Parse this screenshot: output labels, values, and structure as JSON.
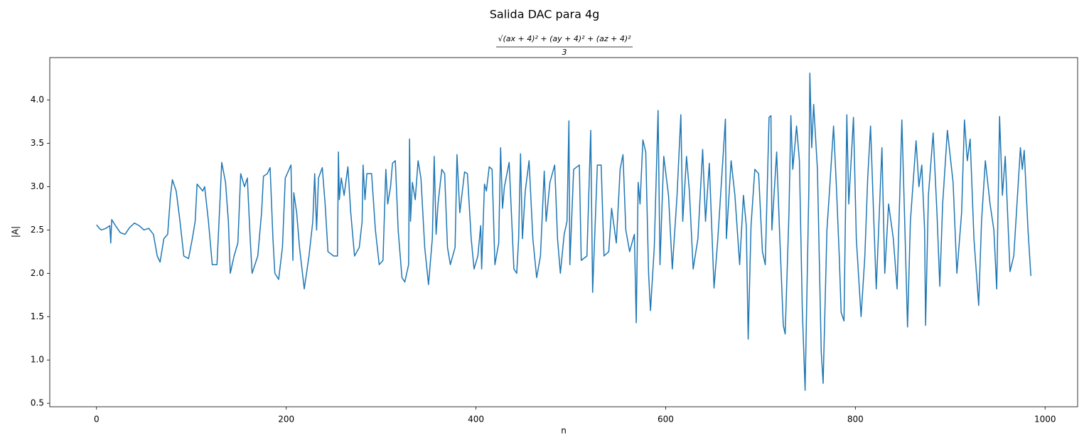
{
  "chart_data": {
    "type": "line",
    "title": "Salida DAC para 4g",
    "subtitle": {
      "numerator": "√(ax + 4)² + (ay + 4)² + (az + 4)²",
      "denominator": "3"
    },
    "x_label": "n",
    "y_label": "|A|",
    "color": "#1f77b4",
    "xlim": [
      -49.3,
      1034.3
    ],
    "ylim": [
      0.46,
      4.49
    ],
    "xticks": [
      0,
      200,
      400,
      600,
      800,
      1000
    ],
    "yticks": [
      0.5,
      {
        "value": 1,
        "label": "1.0"
      },
      1.5,
      {
        "value": 2,
        "label": "2.0"
      },
      2.5,
      {
        "value": 3,
        "label": "3.0"
      },
      3.5,
      {
        "value": 4,
        "label": "4.0"
      }
    ],
    "grid": false,
    "x": [
      0,
      3,
      5,
      10,
      14,
      15,
      16,
      20,
      25,
      30,
      35,
      40,
      45,
      50,
      55,
      60,
      64,
      67,
      71,
      75,
      78,
      80,
      84,
      88,
      92,
      97,
      101,
      104,
      106,
      112,
      114,
      118,
      122,
      127,
      130,
      132,
      136,
      139,
      141,
      145,
      149,
      152,
      156,
      159,
      162,
      164,
      170,
      174,
      176,
      180,
      183,
      186,
      188,
      192,
      196,
      199,
      203,
      205,
      207,
      208,
      211,
      214,
      219,
      224,
      228,
      230,
      232,
      234,
      238,
      241,
      244,
      250,
      254,
      255,
      256,
      258,
      261,
      265,
      268,
      272,
      277,
      280,
      281,
      283,
      285,
      290,
      294,
      298,
      302,
      305,
      307,
      310,
      312,
      315,
      318,
      322,
      325,
      329,
      330,
      331,
      333,
      336,
      339,
      342,
      346,
      350,
      354,
      356,
      358,
      360,
      364,
      367,
      370,
      373,
      378,
      380,
      383,
      388,
      391,
      395,
      398,
      402,
      405,
      406,
      409,
      411,
      414,
      417,
      420,
      424,
      426,
      428,
      430,
      435,
      440,
      443,
      445,
      447,
      449,
      452,
      456,
      460,
      464,
      468,
      472,
      474,
      478,
      483,
      486,
      489,
      493,
      496,
      498,
      499,
      503,
      509,
      511,
      517,
      521,
      523,
      528,
      532,
      535,
      540,
      543,
      548,
      552,
      555,
      558,
      562,
      567,
      569,
      571,
      573,
      576,
      579,
      582,
      584,
      588,
      592,
      594,
      598,
      603,
      607,
      612,
      616,
      618,
      622,
      625,
      629,
      634,
      639,
      642,
      646,
      651,
      655,
      663,
      664,
      669,
      673,
      678,
      682,
      685,
      687,
      690,
      694,
      698,
      702,
      705,
      709,
      711,
      712,
      717,
      720,
      724,
      726,
      730,
      732,
      734,
      738,
      741,
      744,
      747,
      751,
      752,
      754,
      756,
      760,
      764,
      766,
      770,
      773,
      777,
      780,
      783,
      785,
      788,
      791,
      793,
      798,
      801,
      806,
      810,
      813,
      816,
      819,
      822,
      828,
      831,
      835,
      840,
      844,
      849,
      852,
      855,
      858,
      864,
      867,
      870,
      873,
      874,
      877,
      882,
      886,
      889,
      892,
      897,
      903,
      907,
      912,
      915,
      918,
      921,
      925,
      930,
      933,
      937,
      942,
      946,
      949,
      952,
      955,
      958,
      963,
      967,
      974,
      976,
      978,
      982,
      985
    ],
    "values": [
      2.56,
      2.52,
      2.5,
      2.52,
      2.55,
      2.35,
      2.62,
      2.55,
      2.47,
      2.45,
      2.53,
      2.58,
      2.55,
      2.5,
      2.52,
      2.45,
      2.2,
      2.13,
      2.4,
      2.45,
      2.9,
      3.08,
      2.95,
      2.6,
      2.2,
      2.17,
      2.4,
      2.6,
      3.03,
      2.95,
      3.0,
      2.6,
      2.1,
      2.1,
      2.8,
      3.28,
      3.05,
      2.6,
      2.0,
      2.2,
      2.35,
      3.15,
      3.0,
      3.1,
      2.4,
      2.0,
      2.2,
      2.7,
      3.12,
      3.15,
      3.22,
      2.4,
      2.0,
      1.93,
      2.3,
      3.1,
      3.2,
      3.25,
      2.15,
      2.93,
      2.7,
      2.3,
      1.82,
      2.2,
      2.6,
      3.15,
      2.5,
      3.1,
      3.22,
      2.8,
      2.25,
      2.2,
      2.2,
      3.4,
      2.85,
      3.1,
      2.9,
      3.23,
      2.7,
      2.2,
      2.3,
      2.6,
      3.25,
      2.85,
      3.15,
      3.15,
      2.5,
      2.1,
      2.15,
      3.2,
      2.8,
      3.0,
      3.27,
      3.3,
      2.5,
      1.95,
      1.9,
      2.1,
      3.55,
      2.6,
      3.05,
      2.85,
      3.3,
      3.1,
      2.3,
      1.87,
      2.4,
      3.35,
      2.45,
      2.8,
      3.2,
      3.15,
      2.3,
      2.1,
      2.3,
      3.37,
      2.7,
      3.17,
      3.15,
      2.4,
      2.05,
      2.2,
      2.55,
      2.05,
      3.03,
      2.95,
      3.23,
      3.2,
      2.1,
      2.35,
      3.45,
      2.75,
      3.0,
      3.28,
      2.05,
      2.0,
      2.4,
      3.38,
      2.4,
      2.95,
      3.3,
      2.4,
      1.95,
      2.2,
      3.18,
      2.6,
      3.05,
      3.25,
      2.4,
      2.0,
      2.45,
      2.6,
      3.76,
      2.1,
      3.2,
      3.25,
      2.15,
      2.2,
      3.65,
      1.78,
      3.25,
      3.25,
      2.2,
      2.25,
      2.75,
      2.35,
      3.2,
      3.37,
      2.5,
      2.25,
      2.45,
      1.43,
      3.05,
      2.8,
      3.54,
      3.4,
      2.0,
      1.57,
      2.3,
      3.88,
      2.1,
      3.35,
      2.9,
      2.05,
      2.9,
      3.83,
      2.6,
      3.35,
      2.95,
      2.05,
      2.4,
      3.43,
      2.6,
      3.27,
      1.83,
      2.4,
      3.78,
      2.4,
      3.3,
      2.9,
      2.1,
      2.9,
      2.55,
      1.24,
      2.55,
      3.2,
      3.15,
      2.25,
      2.1,
      3.8,
      3.82,
      2.5,
      3.4,
      2.5,
      1.4,
      1.3,
      2.7,
      3.82,
      3.2,
      3.7,
      3.3,
      1.6,
      0.65,
      3.0,
      4.31,
      3.45,
      3.95,
      3.2,
      1.1,
      0.73,
      2.5,
      3.0,
      3.7,
      3.0,
      2.2,
      1.55,
      1.45,
      3.83,
      2.8,
      3.8,
      2.4,
      1.5,
      2.2,
      3.1,
      3.7,
      2.75,
      1.82,
      3.45,
      2.0,
      2.8,
      2.4,
      1.82,
      3.77,
      2.6,
      1.38,
      2.6,
      3.53,
      3.0,
      3.25,
      2.5,
      1.4,
      2.9,
      3.62,
      2.7,
      1.85,
      2.8,
      3.65,
      3.05,
      2.0,
      2.7,
      3.77,
      3.3,
      3.55,
      2.4,
      1.63,
      2.6,
      3.3,
      2.8,
      2.5,
      1.82,
      3.81,
      2.9,
      3.35,
      2.02,
      2.2,
      3.45,
      3.2,
      3.42,
      2.5,
      1.97
    ]
  }
}
